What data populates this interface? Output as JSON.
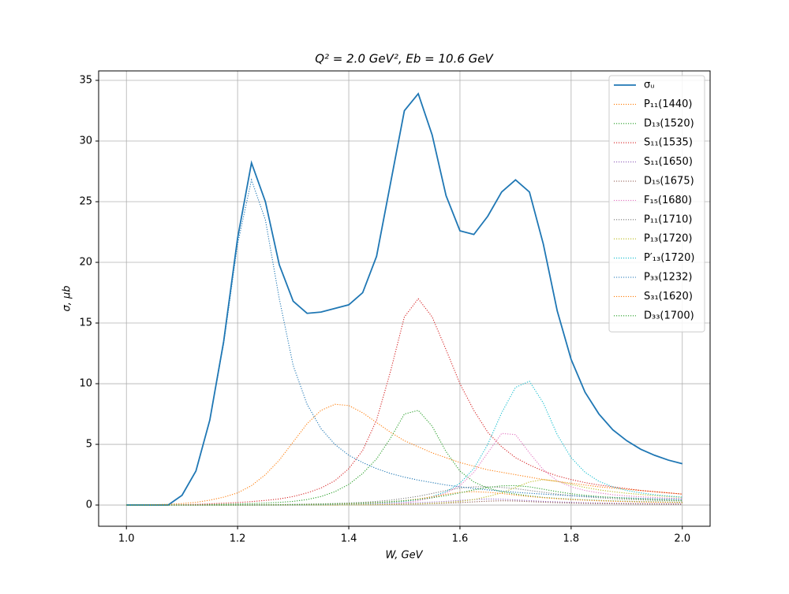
{
  "chart_data": {
    "type": "line",
    "title": "Q² = 2.0 GeV²,  Eb = 10.6 GeV",
    "x_label": "W, GeV",
    "y_label": "σ, μb",
    "x": [
      1.0,
      1.025,
      1.05,
      1.075,
      1.1,
      1.125,
      1.15,
      1.175,
      1.2,
      1.225,
      1.25,
      1.275,
      1.3,
      1.325,
      1.35,
      1.375,
      1.4,
      1.425,
      1.45,
      1.475,
      1.5,
      1.525,
      1.55,
      1.575,
      1.6,
      1.625,
      1.65,
      1.675,
      1.7,
      1.725,
      1.75,
      1.775,
      1.8,
      1.825,
      1.85,
      1.875,
      1.9,
      1.925,
      1.95,
      1.975,
      2.0
    ],
    "xlim": [
      0.95,
      2.05
    ],
    "xticks": [
      {
        "value": 1.0,
        "label": "1.0"
      },
      {
        "value": 1.2,
        "label": "1.2"
      },
      {
        "value": 1.4,
        "label": "1.4"
      },
      {
        "value": 1.6,
        "label": "1.6"
      },
      {
        "value": 1.8,
        "label": "1.8"
      },
      {
        "value": 2.0,
        "label": "2.0"
      }
    ],
    "ylim": [
      -1.75,
      35.78
    ],
    "yticks": [
      0,
      5,
      10,
      15,
      20,
      25,
      30,
      35
    ],
    "grid": true,
    "legend": "upper right",
    "series": [
      {
        "name": "σᵤ",
        "color": "#1f77b4",
        "style": "solid",
        "values": [
          0,
          0,
          0,
          0,
          0.8,
          2.8,
          7.0,
          13.5,
          22.0,
          28.2,
          25.0,
          19.8,
          16.8,
          15.8,
          15.9,
          16.2,
          16.5,
          17.5,
          20.5,
          26.5,
          32.5,
          33.9,
          30.5,
          25.5,
          22.6,
          22.3,
          23.8,
          25.8,
          26.8,
          25.8,
          21.5,
          16.0,
          12.0,
          9.3,
          7.5,
          6.2,
          5.3,
          4.6,
          4.1,
          3.7,
          3.4
        ]
      },
      {
        "name": "P₁₁(1440)",
        "color": "#ff7f0e",
        "style": "dotted",
        "values": [
          0,
          0.01,
          0.03,
          0.06,
          0.12,
          0.22,
          0.4,
          0.65,
          1.0,
          1.6,
          2.5,
          3.7,
          5.2,
          6.7,
          7.8,
          8.3,
          8.2,
          7.6,
          6.8,
          6.0,
          5.3,
          4.8,
          4.3,
          3.9,
          3.5,
          3.2,
          2.9,
          2.7,
          2.5,
          2.3,
          2.1,
          1.95,
          1.8,
          1.65,
          1.5,
          1.4,
          1.3,
          1.2,
          1.1,
          1.0,
          0.9
        ]
      },
      {
        "name": "D₁₃(1520)",
        "color": "#2ca02c",
        "style": "dotted",
        "values": [
          0,
          0,
          0,
          0,
          0.01,
          0.02,
          0.04,
          0.06,
          0.08,
          0.12,
          0.16,
          0.22,
          0.3,
          0.45,
          0.7,
          1.1,
          1.7,
          2.6,
          3.8,
          5.5,
          7.5,
          7.8,
          6.5,
          4.4,
          2.8,
          1.9,
          1.4,
          1.1,
          0.9,
          0.75,
          0.63,
          0.55,
          0.48,
          0.43,
          0.38,
          0.34,
          0.31,
          0.28,
          0.26,
          0.24,
          0.22
        ]
      },
      {
        "name": "S₁₁(1535)",
        "color": "#d62728",
        "style": "dotted",
        "values": [
          0,
          0,
          0,
          0,
          0.02,
          0.05,
          0.1,
          0.15,
          0.2,
          0.28,
          0.38,
          0.5,
          0.7,
          1.0,
          1.4,
          2.0,
          3.0,
          4.5,
          7.0,
          11.0,
          15.5,
          17.0,
          15.5,
          12.8,
          10.0,
          7.8,
          6.0,
          4.8,
          3.9,
          3.3,
          2.8,
          2.4,
          2.1,
          1.85,
          1.65,
          1.5,
          1.35,
          1.2,
          1.1,
          1.0,
          0.9
        ]
      },
      {
        "name": "S₁₁(1650)",
        "color": "#9467bd",
        "style": "dotted",
        "values": [
          0,
          0,
          0,
          0,
          0,
          0,
          0,
          0,
          0.01,
          0.01,
          0.02,
          0.02,
          0.03,
          0.04,
          0.05,
          0.06,
          0.07,
          0.08,
          0.1,
          0.12,
          0.15,
          0.19,
          0.24,
          0.3,
          0.38,
          0.45,
          0.5,
          0.48,
          0.42,
          0.36,
          0.3,
          0.26,
          0.22,
          0.19,
          0.17,
          0.15,
          0.13,
          0.12,
          0.11,
          0.1,
          0.09
        ]
      },
      {
        "name": "D₁₅(1675)",
        "color": "#8c564b",
        "style": "dotted",
        "values": [
          0,
          0,
          0,
          0,
          0,
          0,
          0,
          0,
          0,
          0,
          0,
          0,
          0,
          0,
          0,
          0,
          0.01,
          0.02,
          0.03,
          0.04,
          0.06,
          0.08,
          0.11,
          0.15,
          0.2,
          0.26,
          0.32,
          0.35,
          0.33,
          0.28,
          0.23,
          0.19,
          0.16,
          0.13,
          0.11,
          0.1,
          0.09,
          0.08,
          0.07,
          0.06,
          0.05
        ]
      },
      {
        "name": "F₁₅(1680)",
        "color": "#e377c2",
        "style": "dotted",
        "values": [
          0,
          0,
          0,
          0,
          0,
          0,
          0,
          0,
          0,
          0,
          0,
          0,
          0,
          0,
          0.02,
          0.03,
          0.04,
          0.06,
          0.08,
          0.12,
          0.2,
          0.35,
          0.6,
          1.0,
          1.6,
          2.7,
          4.3,
          5.9,
          5.8,
          4.3,
          2.9,
          2.0,
          1.5,
          1.2,
          1.0,
          0.85,
          0.75,
          0.68,
          0.62,
          0.57,
          0.52
        ]
      },
      {
        "name": "P₁₁(1710)",
        "color": "#7f7f7f",
        "style": "dotted",
        "values": [
          0,
          0,
          0,
          0,
          0,
          0,
          0,
          0,
          0.01,
          0.02,
          0.03,
          0.04,
          0.06,
          0.08,
          0.1,
          0.13,
          0.17,
          0.22,
          0.3,
          0.4,
          0.55,
          0.72,
          0.95,
          1.2,
          1.4,
          1.5,
          1.5,
          1.45,
          1.35,
          1.2,
          1.05,
          0.9,
          0.78,
          0.68,
          0.6,
          0.53,
          0.47,
          0.43,
          0.39,
          0.36,
          0.33
        ]
      },
      {
        "name": "P₁₃(1720)",
        "color": "#bcbd22",
        "style": "dotted",
        "values": [
          0,
          0,
          0,
          0,
          0,
          0,
          0,
          0,
          0,
          0,
          0,
          0,
          0,
          0,
          0,
          0,
          0.01,
          0.02,
          0.03,
          0.05,
          0.07,
          0.1,
          0.14,
          0.2,
          0.3,
          0.45,
          0.7,
          1.0,
          1.45,
          1.9,
          2.1,
          1.95,
          1.7,
          1.45,
          1.25,
          1.1,
          0.97,
          0.87,
          0.78,
          0.7,
          0.63
        ]
      },
      {
        "name": "P′₁₃(1720)",
        "color": "#17becf",
        "style": "dotted",
        "values": [
          0,
          0,
          0,
          0,
          0,
          0,
          0,
          0,
          0,
          0,
          0,
          0,
          0.01,
          0.02,
          0.03,
          0.05,
          0.07,
          0.1,
          0.14,
          0.2,
          0.3,
          0.45,
          0.7,
          1.1,
          1.8,
          3.0,
          5.0,
          7.6,
          9.7,
          10.2,
          8.4,
          5.8,
          3.9,
          2.7,
          1.95,
          1.5,
          1.2,
          1.0,
          0.85,
          0.74,
          0.65
        ]
      },
      {
        "name": "P₃₃(1232)",
        "color": "#1f77b4",
        "style": "dotted",
        "values": [
          0,
          0,
          0,
          0,
          0.8,
          2.8,
          7.0,
          13.3,
          21.5,
          26.8,
          23.5,
          17.0,
          11.5,
          8.3,
          6.3,
          5.0,
          4.1,
          3.5,
          3.0,
          2.6,
          2.3,
          2.05,
          1.85,
          1.65,
          1.5,
          1.37,
          1.25,
          1.15,
          1.05,
          0.97,
          0.9,
          0.83,
          0.77,
          0.72,
          0.67,
          0.63,
          0.59,
          0.55,
          0.52,
          0.49,
          0.46
        ]
      },
      {
        "name": "S₃₁(1620)",
        "color": "#ff7f0e",
        "style": "dotted",
        "values": [
          0,
          0,
          0,
          0,
          0,
          0,
          0,
          0,
          0,
          0,
          0.01,
          0.02,
          0.03,
          0.04,
          0.06,
          0.08,
          0.1,
          0.14,
          0.19,
          0.26,
          0.36,
          0.5,
          0.68,
          0.88,
          1.05,
          1.1,
          1.05,
          0.95,
          0.82,
          0.7,
          0.6,
          0.52,
          0.45,
          0.4,
          0.35,
          0.31,
          0.28,
          0.25,
          0.23,
          0.21,
          0.19
        ]
      },
      {
        "name": "D₃₃(1700)",
        "color": "#2ca02c",
        "style": "dotted",
        "values": [
          0,
          0,
          0,
          0,
          0,
          0,
          0,
          0,
          0,
          0,
          0.01,
          0.02,
          0.03,
          0.05,
          0.07,
          0.1,
          0.13,
          0.17,
          0.22,
          0.28,
          0.36,
          0.46,
          0.6,
          0.78,
          1.0,
          1.25,
          1.45,
          1.58,
          1.6,
          1.5,
          1.3,
          1.1,
          0.93,
          0.8,
          0.7,
          0.62,
          0.55,
          0.49,
          0.44,
          0.4,
          0.36
        ]
      }
    ]
  }
}
